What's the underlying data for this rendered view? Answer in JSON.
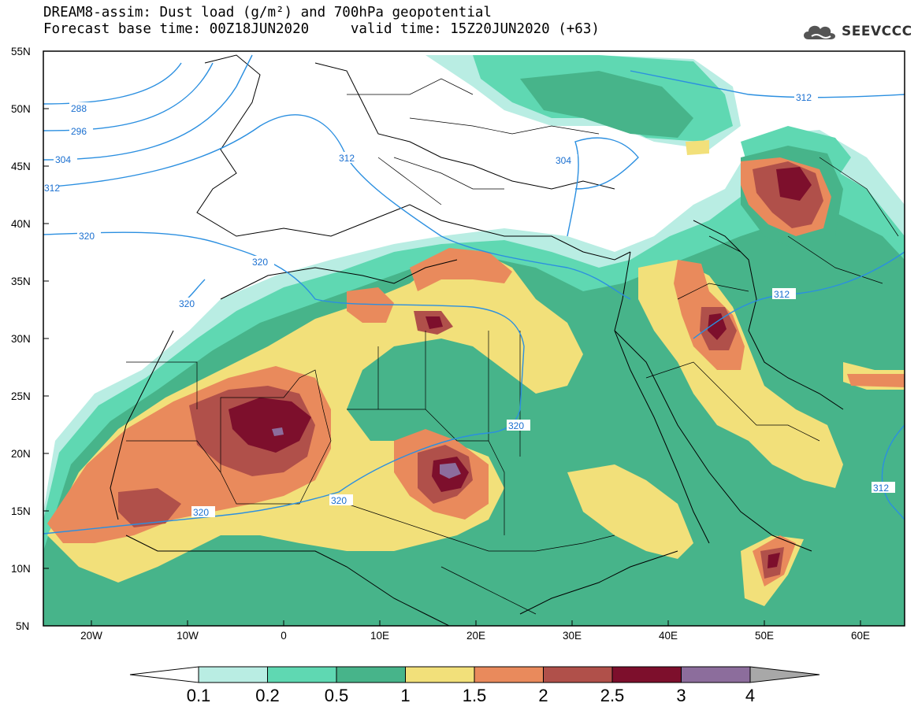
{
  "header": {
    "line1": "DREAM8-assim: Dust load (g/m²) and 700hPa geopotential",
    "line2": "Forecast base time: 00Z18JUN2020     valid time: 15Z20JUN2020 (+63)"
  },
  "logo": {
    "text": "SEEVCCC",
    "icon": "cloud-icon"
  },
  "map": {
    "lat_labels": [
      "55N",
      "50N",
      "45N",
      "40N",
      "35N",
      "30N",
      "25N",
      "20N",
      "15N",
      "10N",
      "5N"
    ],
    "lon_labels": [
      "20W",
      "10W",
      "0",
      "10E",
      "20E",
      "30E",
      "40E",
      "50E",
      "60E"
    ],
    "contour_labels": [
      "288",
      "296",
      "304",
      "312",
      "320",
      "320",
      "320",
      "312",
      "304",
      "320",
      "320",
      "320",
      "312",
      "312",
      "312"
    ]
  },
  "colorbar": {
    "ticks": [
      "0.1",
      "0.2",
      "0.5",
      "1",
      "1.5",
      "2",
      "2.5",
      "3",
      "4"
    ],
    "colors": [
      "#ffffff",
      "#b9ede3",
      "#5fd8b2",
      "#47b48a",
      "#f2e07a",
      "#e98a5c",
      "#b0504a",
      "#7d0f2c",
      "#8c6d9c",
      "#a8a8a8"
    ]
  },
  "colors": {
    "dust_0_1": "#b9ede3",
    "dust_0_2": "#5fd8b2",
    "dust_0_5": "#47b48a",
    "dust_1": "#f2e07a",
    "dust_1_5": "#e98a5c",
    "dust_2": "#b0504a",
    "dust_2_5": "#7d0f2c",
    "dust_3": "#8c6d9c",
    "contour": "#2b8fe0"
  }
}
